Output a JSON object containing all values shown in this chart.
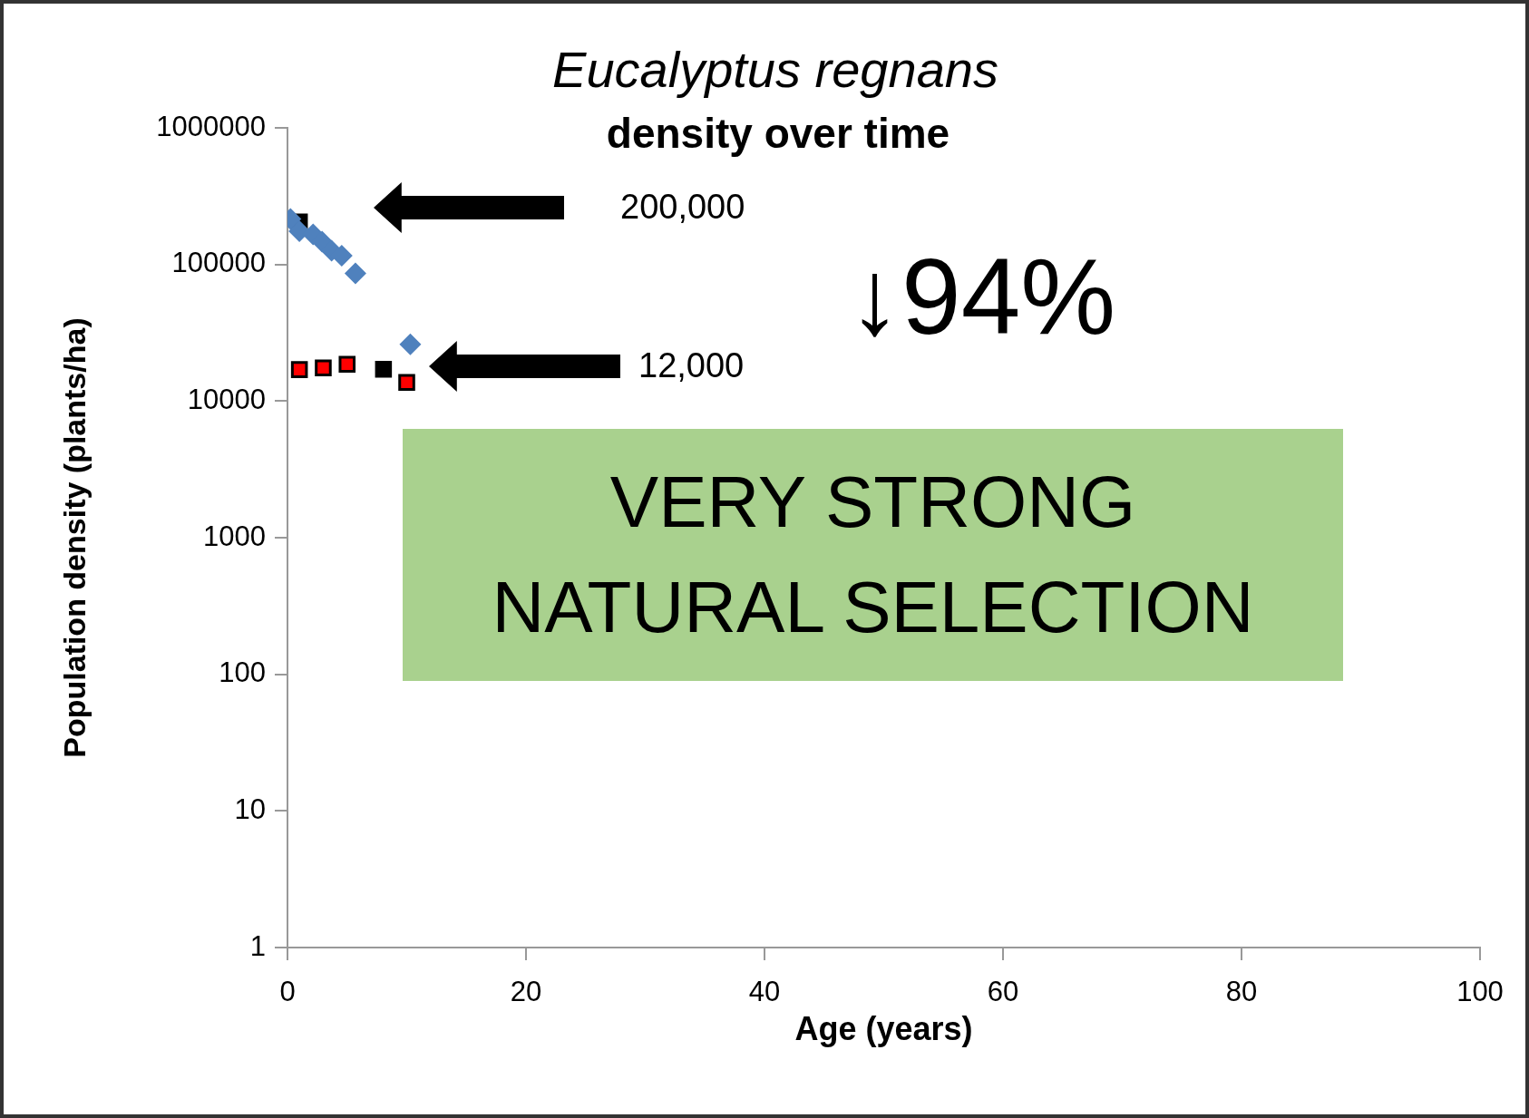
{
  "chart_data": {
    "type": "scatter",
    "title": "Eucalyptus regnans",
    "subtitle": "density over time",
    "xlabel": "Age (years)",
    "ylabel": "Population density (plants/ha)",
    "xlim": [
      0,
      100
    ],
    "xticks": [
      0,
      20,
      40,
      60,
      80,
      100
    ],
    "ylim": [
      1,
      1000000
    ],
    "yticks": [
      1,
      10,
      100,
      1000,
      10000,
      100000,
      1000000
    ],
    "log": "y",
    "grid": false,
    "legend": false,
    "series": [
      {
        "color": "#4f81bd",
        "marker": "diamond",
        "x": [
          0.25,
          1.0,
          2.15,
          2.9,
          3.7,
          4.55,
          5.7,
          10.3
        ],
        "values": [
          215000,
          175000,
          166000,
          147000,
          126000,
          116000,
          86000,
          26000
        ]
      },
      {
        "color": "#000000",
        "marker": "square",
        "x": [
          1.0,
          8.05
        ],
        "values": [
          205000,
          17100
        ]
      },
      {
        "color": "#ff0000",
        "marker": "square",
        "x": [
          1.0,
          3.0,
          5.0,
          10.0
        ],
        "values": [
          17000,
          17500,
          18600,
          13700
        ]
      }
    ],
    "annotations": [
      "200,000",
      "12,000",
      "↓94%",
      "VERY STRONG NATURAL SELECTION"
    ]
  }
}
